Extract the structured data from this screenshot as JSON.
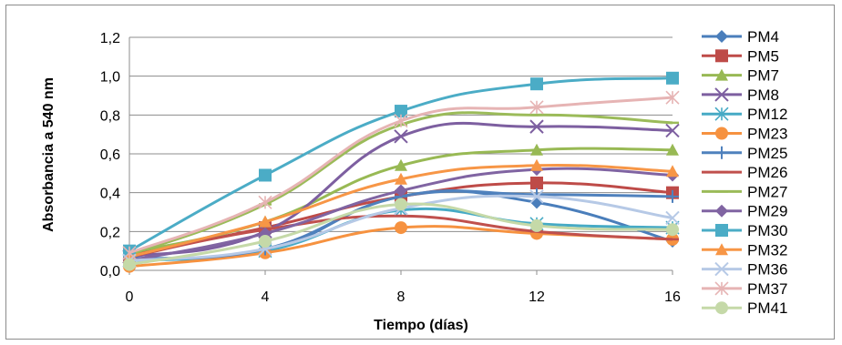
{
  "chart_data": {
    "type": "line",
    "xlabel": "Tiempo (días)",
    "ylabel": "Absorbancia a 540 nm",
    "x": [
      0,
      4,
      8,
      12,
      16
    ],
    "x_ticks": [
      "0",
      "4",
      "8",
      "12",
      "16"
    ],
    "xlim": [
      0,
      16
    ],
    "ylim": [
      0,
      1.2
    ],
    "y_ticks": [
      "0,0",
      "0,2",
      "0,4",
      "0,6",
      "0,8",
      "1,0",
      "1,2"
    ],
    "grid": "horizontal",
    "legend_position": "right",
    "series": [
      {
        "name": "PM4",
        "color": "#4a7ebb",
        "marker": "diamond",
        "values": [
          0.06,
          0.1,
          0.38,
          0.35,
          0.15
        ]
      },
      {
        "name": "PM5",
        "color": "#be4b48",
        "marker": "square",
        "values": [
          0.08,
          0.22,
          0.38,
          0.45,
          0.4
        ]
      },
      {
        "name": "PM7",
        "color": "#98b954",
        "marker": "triangle",
        "values": [
          0.09,
          0.25,
          0.54,
          0.62,
          0.62
        ]
      },
      {
        "name": "PM8",
        "color": "#7d5fa0",
        "marker": "x",
        "values": [
          0.07,
          0.2,
          0.69,
          0.74,
          0.72
        ]
      },
      {
        "name": "PM12",
        "color": "#46aac5",
        "marker": "asterisk",
        "values": [
          0.05,
          0.1,
          0.31,
          0.24,
          0.22
        ]
      },
      {
        "name": "PM23",
        "color": "#f69240",
        "marker": "circle",
        "values": [
          0.02,
          0.09,
          0.22,
          0.19,
          0.16
        ]
      },
      {
        "name": "PM25",
        "color": "#4f81bd",
        "marker": "plus",
        "values": [
          0.06,
          0.11,
          0.38,
          0.39,
          0.38
        ]
      },
      {
        "name": "PM26",
        "color": "#c0504d",
        "marker": "dash",
        "values": [
          0.07,
          0.21,
          0.28,
          0.2,
          0.16
        ]
      },
      {
        "name": "PM27",
        "color": "#9bbb59",
        "marker": "dash",
        "values": [
          0.08,
          0.34,
          0.75,
          0.8,
          0.76
        ]
      },
      {
        "name": "PM29",
        "color": "#8064a2",
        "marker": "diamond",
        "values": [
          0.05,
          0.19,
          0.41,
          0.52,
          0.49
        ]
      },
      {
        "name": "PM30",
        "color": "#4bacc6",
        "marker": "square",
        "values": [
          0.1,
          0.49,
          0.82,
          0.96,
          0.99
        ]
      },
      {
        "name": "PM32",
        "color": "#f79646",
        "marker": "triangle",
        "values": [
          0.07,
          0.25,
          0.47,
          0.54,
          0.51
        ]
      },
      {
        "name": "PM36",
        "color": "#b6c9e6",
        "marker": "x",
        "values": [
          0.05,
          0.11,
          0.32,
          0.38,
          0.27
        ]
      },
      {
        "name": "PM37",
        "color": "#e6b4b4",
        "marker": "asterisk",
        "values": [
          0.09,
          0.35,
          0.77,
          0.84,
          0.89
        ]
      },
      {
        "name": "PM41",
        "color": "#c5d9a8",
        "marker": "circle",
        "values": [
          0.03,
          0.15,
          0.34,
          0.23,
          0.21
        ]
      }
    ]
  }
}
